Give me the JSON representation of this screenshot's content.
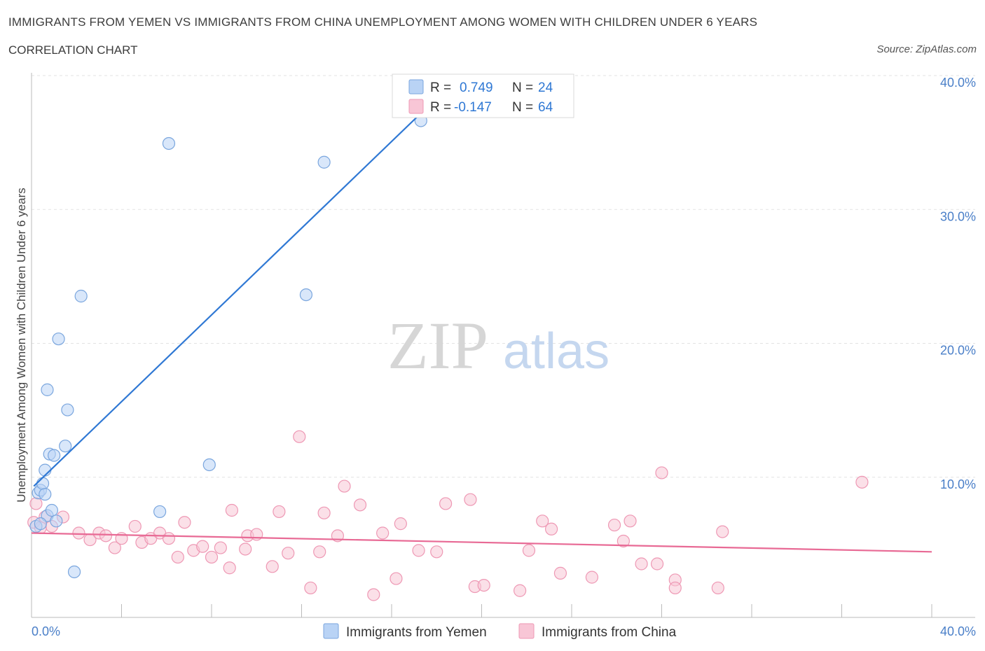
{
  "header": {
    "title": "IMMIGRANTS FROM YEMEN VS IMMIGRANTS FROM CHINA UNEMPLOYMENT AMONG WOMEN WITH CHILDREN UNDER 6 YEARS",
    "subtitle": "CORRELATION CHART",
    "source": "Source: ZipAtlas.com"
  },
  "watermark": {
    "zip": "ZIP",
    "atlas": "atlas"
  },
  "colors": {
    "yemen_fill": "#b9d3f5",
    "yemen_stroke": "#7aa6de",
    "yemen_line": "#2f78d4",
    "china_fill": "#f8c6d6",
    "china_stroke": "#ee98b4",
    "china_line": "#e86a95",
    "accent_text": "#2f78d4"
  },
  "legend": {
    "r_label": "R =",
    "n_label": "N =",
    "yemen": {
      "r": "0.749",
      "n": "24"
    },
    "china": {
      "r": "-0.147",
      "n": "64"
    }
  },
  "chart_data": {
    "type": "scatter",
    "xlabel": "",
    "ylabel": "Unemployment Among Women with Children Under 6 years",
    "xlim": [
      0,
      40
    ],
    "ylim": [
      0,
      40
    ],
    "x_tick_labels": [
      "0.0%",
      "40.0%"
    ],
    "y_ticks": [
      10,
      20,
      30,
      40
    ],
    "y_tick_labels": [
      "10.0%",
      "20.0%",
      "30.0%",
      "40.0%"
    ],
    "grid": true,
    "legend_position": "bottom",
    "series": [
      {
        "name": "Immigrants from Yemen",
        "points": [
          [
            0.2,
            6.8
          ],
          [
            0.3,
            9.3
          ],
          [
            0.4,
            9.5
          ],
          [
            0.5,
            10.0
          ],
          [
            0.6,
            11.0
          ],
          [
            0.7,
            7.6
          ],
          [
            0.7,
            17.0
          ],
          [
            0.8,
            12.2
          ],
          [
            0.9,
            8.0
          ],
          [
            1.0,
            12.1
          ],
          [
            1.1,
            7.2
          ],
          [
            1.2,
            20.8
          ],
          [
            1.5,
            12.8
          ],
          [
            1.6,
            15.5
          ],
          [
            1.9,
            3.4
          ],
          [
            2.2,
            24.0
          ],
          [
            5.7,
            7.9
          ],
          [
            6.1,
            35.4
          ],
          [
            7.9,
            11.4
          ],
          [
            12.2,
            24.1
          ],
          [
            13.0,
            34.0
          ],
          [
            17.3,
            37.1
          ],
          [
            0.6,
            9.2
          ],
          [
            0.4,
            7.0
          ]
        ],
        "trend": {
          "x": [
            0.1,
            18.5
          ],
          "y": [
            9.8,
            39.6
          ]
        }
      },
      {
        "name": "Immigrants from China",
        "points": [
          [
            0.1,
            7.1
          ],
          [
            0.2,
            8.5
          ],
          [
            0.4,
            6.7
          ],
          [
            0.6,
            7.5
          ],
          [
            0.9,
            6.8
          ],
          [
            1.4,
            7.5
          ],
          [
            2.1,
            6.3
          ],
          [
            2.6,
            5.8
          ],
          [
            3.0,
            6.3
          ],
          [
            3.3,
            6.1
          ],
          [
            3.7,
            5.2
          ],
          [
            4.0,
            5.9
          ],
          [
            4.6,
            6.8
          ],
          [
            4.9,
            5.6
          ],
          [
            5.3,
            5.9
          ],
          [
            5.7,
            6.3
          ],
          [
            6.1,
            5.9
          ],
          [
            6.5,
            4.5
          ],
          [
            6.8,
            7.1
          ],
          [
            7.2,
            5.0
          ],
          [
            7.6,
            5.3
          ],
          [
            8.0,
            4.5
          ],
          [
            8.4,
            5.2
          ],
          [
            8.8,
            3.7
          ],
          [
            8.9,
            8.0
          ],
          [
            9.5,
            5.1
          ],
          [
            9.6,
            6.1
          ],
          [
            10.0,
            6.2
          ],
          [
            10.7,
            3.8
          ],
          [
            11.0,
            7.9
          ],
          [
            11.4,
            4.8
          ],
          [
            11.9,
            13.5
          ],
          [
            12.4,
            2.2
          ],
          [
            12.8,
            4.9
          ],
          [
            13.0,
            7.8
          ],
          [
            13.6,
            6.1
          ],
          [
            13.9,
            9.8
          ],
          [
            14.6,
            8.4
          ],
          [
            15.2,
            1.7
          ],
          [
            15.6,
            6.3
          ],
          [
            16.2,
            2.9
          ],
          [
            16.4,
            7.0
          ],
          [
            17.2,
            5.0
          ],
          [
            18.0,
            4.9
          ],
          [
            18.4,
            8.5
          ],
          [
            19.5,
            8.8
          ],
          [
            19.7,
            2.3
          ],
          [
            20.1,
            2.4
          ],
          [
            21.7,
            2.0
          ],
          [
            22.1,
            5.0
          ],
          [
            22.7,
            7.2
          ],
          [
            23.1,
            6.6
          ],
          [
            23.5,
            3.3
          ],
          [
            24.9,
            3.0
          ],
          [
            25.9,
            6.9
          ],
          [
            26.3,
            5.7
          ],
          [
            26.6,
            7.2
          ],
          [
            27.1,
            4.0
          ],
          [
            27.8,
            4.0
          ],
          [
            28.0,
            10.8
          ],
          [
            28.6,
            2.8
          ],
          [
            28.6,
            2.2
          ],
          [
            30.5,
            2.2
          ],
          [
            30.7,
            6.4
          ]
        ],
        "extra_points": [
          [
            36.9,
            10.1
          ]
        ],
        "trend": {
          "x": [
            0,
            40
          ],
          "y": [
            6.3,
            4.9
          ]
        }
      }
    ]
  },
  "bottom_legend": {
    "yemen_label": "Immigrants from Yemen",
    "china_label": "Immigrants from China"
  }
}
